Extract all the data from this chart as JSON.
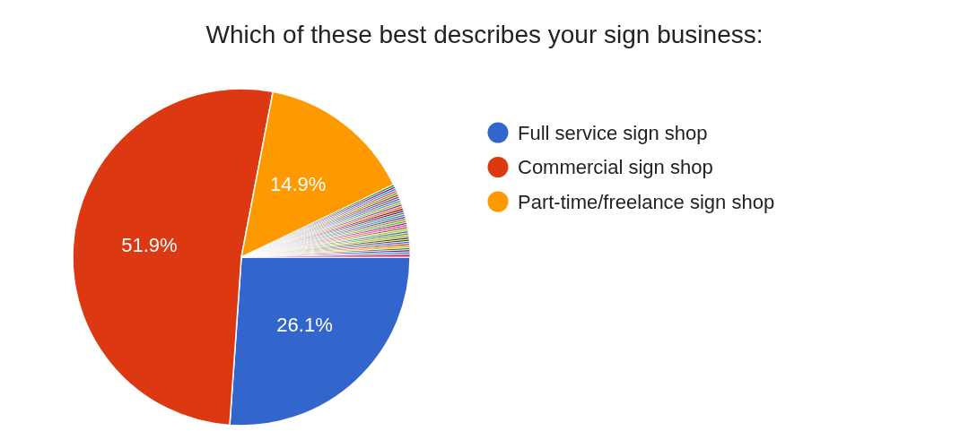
{
  "chart_data": {
    "type": "pie",
    "title": "Which of these best describes your sign business:",
    "categories": [
      "Full service sign shop",
      "Commercial sign shop",
      "Part-time/freelance sign shop",
      null,
      null,
      null,
      null,
      null,
      null,
      null,
      null,
      null,
      null,
      null,
      null,
      null,
      null,
      null,
      null,
      null,
      null,
      null,
      null,
      null,
      null,
      null,
      null,
      null,
      null,
      null,
      null,
      null,
      null,
      null,
      null,
      null,
      null,
      null
    ],
    "values": [
      26.1,
      51.9,
      14.9,
      0.2,
      0.2,
      0.2,
      0.2,
      0.2,
      0.2,
      0.2,
      0.2,
      0.2,
      0.2,
      0.2,
      0.2,
      0.2,
      0.2,
      0.2,
      0.2,
      0.2,
      0.2,
      0.2,
      0.2,
      0.2,
      0.2,
      0.2,
      0.2,
      0.2,
      0.2,
      0.2,
      0.2,
      0.2,
      0.2,
      0.2,
      0.2,
      0.2,
      0.2,
      0.3
    ],
    "colors": [
      "#3366cc",
      "#dc3912",
      "#ff9900",
      "#109618",
      "#990099",
      "#0099c6",
      "#dd4477",
      "#66aa00",
      "#b82e2e",
      "#316395",
      "#994499",
      "#22aa99",
      "#aaaa11",
      "#6633cc",
      "#e67300",
      "#8b0707",
      "#651067",
      "#329262",
      "#5574a6",
      "#3b3eac",
      "#b77322",
      "#16d620",
      "#b91383",
      "#f4359e",
      "#9c5935",
      "#a9c413",
      "#2a778d",
      "#668d1c",
      "#bea413",
      "#0c5922",
      "#743411",
      "#3366cc",
      "#dc3912",
      "#ff9900",
      "#109618",
      "#990099",
      "#0099c6",
      "#dd4477"
    ],
    "value_labels": [
      "26.1%",
      "51.9%",
      "14.9%",
      null,
      null,
      null,
      null,
      null,
      null,
      null,
      null,
      null,
      null,
      null,
      null,
      null,
      null,
      null,
      null,
      null,
      null,
      null,
      null,
      null,
      null,
      null,
      null,
      null,
      null,
      null,
      null,
      null,
      null,
      null,
      null,
      null,
      null,
      null
    ],
    "legend": "right"
  }
}
